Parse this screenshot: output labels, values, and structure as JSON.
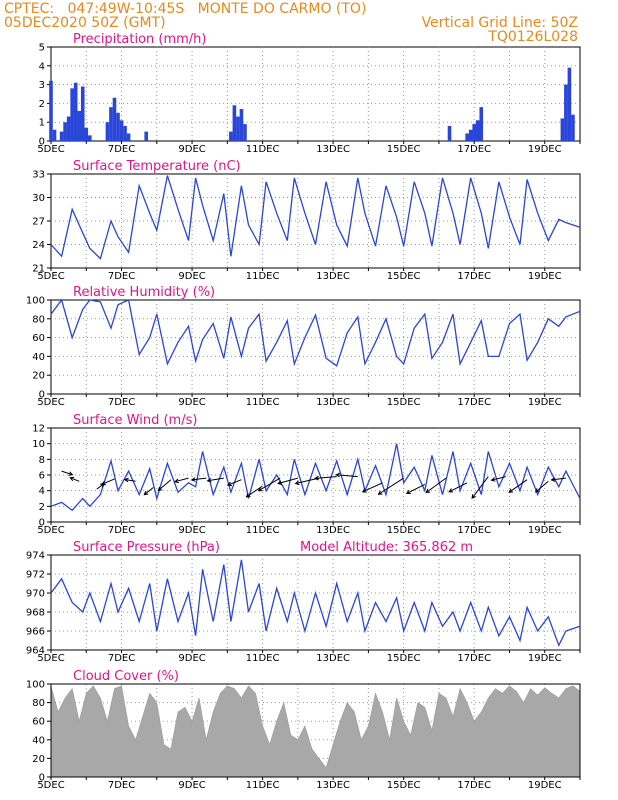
{
  "header": {
    "left_line1": "CPTEC:   047:49W-10:45S   MONTE DO CARMO (TO)",
    "left_line2": "05DEC2020 50Z (GMT)",
    "right_line1": "Vertical Grid Line: 50Z",
    "right_line2": "TQ0126L028"
  },
  "colors": {
    "header": "#e8891c",
    "title": "#e0148c",
    "series": "#2a46d8",
    "cloud": "#a8a8a8"
  },
  "x_ticks": [
    "5DEC",
    "7DEC",
    "9DEC",
    "11DEC",
    "13DEC",
    "15DEC",
    "17DEC",
    "19DEC"
  ],
  "x_range_days": [
    5,
    20
  ],
  "chart_data": [
    {
      "type": "bar",
      "title": "Precipitation (mm/h)",
      "ylim": [
        0,
        5
      ],
      "yticks": [
        0,
        1,
        2,
        3,
        4,
        5
      ],
      "x": [
        5.0,
        5.1,
        5.3,
        5.4,
        5.5,
        5.6,
        5.7,
        5.8,
        5.9,
        6.0,
        6.1,
        6.6,
        6.7,
        6.8,
        6.9,
        7.0,
        7.1,
        7.2,
        7.7,
        10.1,
        10.2,
        10.3,
        10.4,
        10.5,
        16.3,
        16.8,
        16.9,
        17.0,
        17.1,
        17.2,
        19.5,
        19.6,
        19.7,
        19.8
      ],
      "values": [
        3.2,
        0.6,
        0.5,
        1.0,
        1.3,
        2.8,
        3.1,
        1.6,
        2.9,
        0.7,
        0.3,
        1.0,
        1.8,
        2.3,
        1.5,
        1.1,
        0.8,
        0.4,
        0.5,
        0.5,
        1.9,
        1.3,
        1.7,
        0.9,
        0.8,
        0.4,
        0.6,
        0.9,
        1.1,
        1.8,
        1.2,
        3.0,
        3.9,
        1.4
      ]
    },
    {
      "type": "line",
      "title": "Surface Temperature (nC)",
      "ylim": [
        21,
        33
      ],
      "yticks": [
        21,
        24,
        27,
        30,
        33
      ],
      "x": [
        5.0,
        5.3,
        5.6,
        5.9,
        6.1,
        6.4,
        6.7,
        6.9,
        7.2,
        7.5,
        7.8,
        8.0,
        8.3,
        8.6,
        8.9,
        9.1,
        9.3,
        9.6,
        9.9,
        10.1,
        10.4,
        10.6,
        10.9,
        11.1,
        11.4,
        11.7,
        11.9,
        12.2,
        12.5,
        12.8,
        13.1,
        13.4,
        13.7,
        13.9,
        14.2,
        14.5,
        14.8,
        15.0,
        15.3,
        15.6,
        15.8,
        16.1,
        16.4,
        16.6,
        16.9,
        17.2,
        17.4,
        17.7,
        18.0,
        18.3,
        18.5,
        18.8,
        19.1,
        19.4,
        19.6,
        20.0
      ],
      "values": [
        24,
        22.5,
        28.5,
        25.5,
        23.5,
        22.2,
        27,
        25,
        23,
        31.5,
        28,
        25.8,
        32.8,
        28.5,
        24.5,
        32.5,
        29,
        24.5,
        30.5,
        22.5,
        31.5,
        26.5,
        24,
        32,
        28,
        24.5,
        32.5,
        28,
        24,
        32,
        26.5,
        23.8,
        32.5,
        28,
        23.8,
        31.5,
        27.5,
        23.8,
        32,
        28,
        23.8,
        32.5,
        28,
        24,
        32.5,
        28,
        23.5,
        32,
        27.5,
        24,
        32.3,
        28,
        24.5,
        27.2,
        26.8,
        26.2
      ]
    },
    {
      "type": "line",
      "title": "Relative Humidity (%)",
      "ylim": [
        0,
        100
      ],
      "yticks": [
        0,
        20,
        40,
        60,
        80,
        100
      ],
      "x": [
        5.0,
        5.3,
        5.6,
        5.9,
        6.1,
        6.4,
        6.7,
        6.9,
        7.2,
        7.5,
        7.8,
        8.0,
        8.3,
        8.6,
        8.9,
        9.1,
        9.3,
        9.6,
        9.9,
        10.1,
        10.4,
        10.6,
        10.9,
        11.1,
        11.4,
        11.7,
        11.9,
        12.2,
        12.5,
        12.8,
        13.1,
        13.4,
        13.7,
        13.9,
        14.2,
        14.5,
        14.8,
        15.0,
        15.3,
        15.6,
        15.8,
        16.1,
        16.4,
        16.6,
        16.9,
        17.2,
        17.4,
        17.7,
        18.0,
        18.3,
        18.5,
        18.8,
        19.1,
        19.4,
        19.6,
        20.0
      ],
      "values": [
        85,
        100,
        60,
        90,
        100,
        98,
        70,
        95,
        100,
        42,
        60,
        85,
        32,
        55,
        72,
        35,
        58,
        75,
        38,
        82,
        40,
        70,
        85,
        35,
        55,
        78,
        32,
        60,
        84,
        38,
        30,
        65,
        82,
        32,
        55,
        80,
        40,
        32,
        70,
        85,
        38,
        55,
        85,
        32,
        55,
        78,
        40,
        40,
        75,
        85,
        36,
        55,
        80,
        72,
        82,
        88
      ]
    },
    {
      "type": "line",
      "title": "Surface Wind (m/s)",
      "ylim": [
        0,
        12
      ],
      "yticks": [
        0,
        2,
        4,
        6,
        8,
        10,
        12
      ],
      "x": [
        5.0,
        5.3,
        5.6,
        5.9,
        6.1,
        6.4,
        6.7,
        6.9,
        7.2,
        7.5,
        7.8,
        8.0,
        8.3,
        8.6,
        8.9,
        9.1,
        9.3,
        9.6,
        9.9,
        10.1,
        10.4,
        10.6,
        10.9,
        11.1,
        11.4,
        11.7,
        11.9,
        12.2,
        12.5,
        12.8,
        13.1,
        13.4,
        13.7,
        13.9,
        14.2,
        14.5,
        14.8,
        15.0,
        15.3,
        15.6,
        15.8,
        16.1,
        16.4,
        16.6,
        16.9,
        17.2,
        17.4,
        17.7,
        18.0,
        18.3,
        18.5,
        18.8,
        19.1,
        19.4,
        19.6,
        20.0
      ],
      "values": [
        2,
        2.5,
        1.5,
        3,
        2,
        3.5,
        7.8,
        4,
        6.5,
        3.5,
        6.8,
        3,
        7.5,
        3.8,
        5,
        4.5,
        9,
        3.5,
        7,
        3.8,
        7.5,
        3,
        8,
        4,
        6,
        3.5,
        8,
        3.5,
        7.5,
        4,
        7.8,
        3.5,
        8,
        4,
        7.2,
        3.5,
        10,
        5,
        7,
        4,
        8.5,
        3.5,
        9,
        4,
        7.5,
        3.5,
        9,
        4.5,
        7.5,
        4,
        7,
        3.5,
        7,
        4.5,
        6.5,
        3
      ]
    },
    {
      "type": "line",
      "title": "Surface Pressure (hPa)",
      "annotation": "Model Altitude: 365.862 m",
      "ylim": [
        964,
        974
      ],
      "yticks": [
        964,
        966,
        968,
        970,
        972,
        974
      ],
      "x": [
        5.0,
        5.3,
        5.6,
        5.9,
        6.1,
        6.4,
        6.7,
        6.9,
        7.2,
        7.5,
        7.8,
        8.0,
        8.3,
        8.6,
        8.9,
        9.1,
        9.3,
        9.6,
        9.9,
        10.1,
        10.4,
        10.6,
        10.9,
        11.1,
        11.4,
        11.7,
        11.9,
        12.2,
        12.5,
        12.8,
        13.1,
        13.4,
        13.7,
        13.9,
        14.2,
        14.5,
        14.8,
        15.0,
        15.3,
        15.6,
        15.8,
        16.1,
        16.4,
        16.6,
        16.9,
        17.2,
        17.4,
        17.7,
        18.0,
        18.3,
        18.5,
        18.8,
        19.1,
        19.4,
        19.6,
        20.0
      ],
      "values": [
        970,
        971.5,
        969,
        968,
        970,
        967,
        971,
        968,
        970.5,
        967,
        971,
        966,
        971.5,
        967,
        970,
        965.5,
        972.5,
        967,
        973,
        967,
        973.5,
        968,
        971,
        966,
        970.5,
        967,
        970,
        966,
        970,
        966.5,
        971,
        967,
        970,
        966,
        969,
        967,
        969.5,
        966,
        969,
        966,
        969,
        966.5,
        968,
        966,
        969,
        966,
        968.5,
        965.5,
        967.5,
        965,
        968.5,
        966,
        967.5,
        964.5,
        966,
        966.5
      ]
    },
    {
      "type": "area",
      "title": "Cloud Cover (%)",
      "ylim": [
        0,
        100
      ],
      "yticks": [
        0,
        20,
        40,
        60,
        80,
        100
      ],
      "x": [
        5.0,
        5.2,
        5.4,
        5.6,
        5.8,
        6.0,
        6.2,
        6.4,
        6.6,
        6.8,
        7.0,
        7.2,
        7.4,
        7.6,
        7.8,
        8.0,
        8.2,
        8.4,
        8.6,
        8.8,
        9.0,
        9.2,
        9.4,
        9.6,
        9.8,
        10.0,
        10.2,
        10.4,
        10.6,
        10.8,
        11.0,
        11.2,
        11.4,
        11.6,
        11.8,
        12.0,
        12.2,
        12.4,
        12.6,
        12.8,
        13.0,
        13.2,
        13.4,
        13.6,
        13.8,
        14.0,
        14.2,
        14.4,
        14.6,
        14.8,
        15.0,
        15.2,
        15.4,
        15.6,
        15.8,
        16.0,
        16.2,
        16.4,
        16.6,
        16.8,
        17.0,
        17.2,
        17.4,
        17.6,
        17.8,
        18.0,
        18.2,
        18.4,
        18.6,
        18.8,
        19.0,
        19.2,
        19.4,
        19.6,
        19.8,
        20.0
      ],
      "values": [
        98,
        70,
        85,
        95,
        60,
        90,
        98,
        85,
        60,
        95,
        98,
        55,
        40,
        65,
        90,
        80,
        35,
        30,
        70,
        75,
        60,
        85,
        40,
        70,
        90,
        98,
        95,
        85,
        98,
        90,
        55,
        35,
        60,
        80,
        45,
        40,
        55,
        30,
        20,
        10,
        35,
        60,
        80,
        70,
        40,
        55,
        90,
        70,
        40,
        85,
        60,
        45,
        80,
        75,
        50,
        90,
        85,
        65,
        95,
        80,
        60,
        70,
        85,
        95,
        90,
        98,
        92,
        80,
        95,
        88,
        96,
        90,
        85,
        95,
        98,
        92
      ]
    }
  ],
  "wind_arrows": [
    {
      "day": 5.3,
      "y": 6.5,
      "u": 1.2,
      "v": -0.4
    },
    {
      "day": 5.8,
      "y": 5.2,
      "u": -1.0,
      "v": 0.4
    },
    {
      "day": 6.3,
      "y": 4.2,
      "u": 0.8,
      "v": 0.6
    },
    {
      "day": 6.8,
      "y": 5.5,
      "u": -1.4,
      "v": -0.6
    },
    {
      "day": 7.4,
      "y": 5.2,
      "u": -1.2,
      "v": 0.2
    },
    {
      "day": 7.9,
      "y": 4.4,
      "u": -1.0,
      "v": -0.8
    },
    {
      "day": 8.4,
      "y": 5.4,
      "u": -1.4,
      "v": -1.2
    },
    {
      "day": 8.9,
      "y": 5.6,
      "u": -1.5,
      "v": -0.4
    },
    {
      "day": 9.4,
      "y": 5.6,
      "u": -1.6,
      "v": -0.2
    },
    {
      "day": 9.9,
      "y": 5.6,
      "u": -1.8,
      "v": -0.3
    },
    {
      "day": 10.4,
      "y": 5.4,
      "u": -1.5,
      "v": -0.6
    },
    {
      "day": 11.0,
      "y": 4.6,
      "u": -1.8,
      "v": -1.2
    },
    {
      "day": 11.5,
      "y": 5.6,
      "u": -2.4,
      "v": -1.4
    },
    {
      "day": 12.0,
      "y": 5.6,
      "u": -2.2,
      "v": -0.6
    },
    {
      "day": 12.6,
      "y": 5.6,
      "u": -2.6,
      "v": -0.6
    },
    {
      "day": 13.1,
      "y": 5.8,
      "u": -2.4,
      "v": -0.2
    },
    {
      "day": 13.7,
      "y": 5.8,
      "u": -2.4,
      "v": 0.2
    },
    {
      "day": 14.4,
      "y": 5.0,
      "u": -2.2,
      "v": -1.0
    },
    {
      "day": 15.0,
      "y": 5.6,
      "u": -2.8,
      "v": -1.8
    },
    {
      "day": 15.6,
      "y": 4.8,
      "u": -2.0,
      "v": -1.0
    },
    {
      "day": 16.2,
      "y": 5.6,
      "u": -2.2,
      "v": -1.6
    },
    {
      "day": 16.8,
      "y": 5.0,
      "u": -2.0,
      "v": -1.0
    },
    {
      "day": 17.4,
      "y": 5.8,
      "u": -1.8,
      "v": -2.4
    },
    {
      "day": 17.9,
      "y": 5.8,
      "u": -1.6,
      "v": -0.4
    },
    {
      "day": 18.5,
      "y": 5.4,
      "u": -2.0,
      "v": -1.4
    },
    {
      "day": 19.1,
      "y": 5.2,
      "u": -1.4,
      "v": -1.2
    },
    {
      "day": 19.6,
      "y": 5.6,
      "u": -1.6,
      "v": -0.2
    }
  ]
}
